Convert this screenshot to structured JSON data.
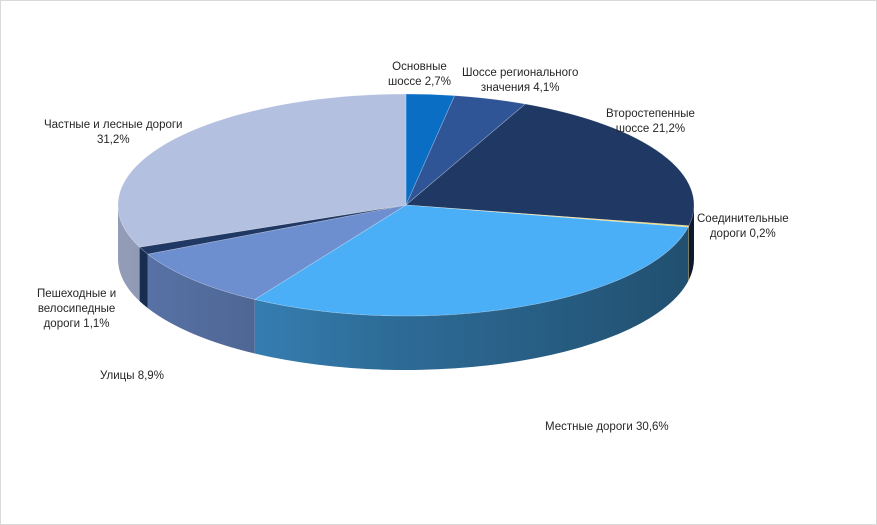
{
  "chart_data": {
    "type": "pie",
    "style": "3d",
    "title": "",
    "unit": "%",
    "slices": [
      {
        "label": "Основные\nшоссе 2,7%",
        "value": 2.7,
        "color": "#0a6ec4"
      },
      {
        "label": "Шоссе регионального\nзначения 4,1%",
        "value": 4.1,
        "color": "#2f5597"
      },
      {
        "label": "Второстепенные\nшоссе 21,2%",
        "value": 21.2,
        "color": "#1f3864"
      },
      {
        "label": "Соединительные\nдороги 0,2%",
        "value": 0.2,
        "color": "#f2d76b"
      },
      {
        "label": "Местные дороги 30,6%",
        "value": 30.6,
        "color": "#4aaff7"
      },
      {
        "label": "Улицы 8,9%",
        "value": 8.9,
        "color": "#6e8fcf"
      },
      {
        "label": "Пешеходные и\nвелосипедные\nдороги 1,1%",
        "value": 1.1,
        "color": "#1f3864"
      },
      {
        "label": "Частные и лесные дороги\n31,2%",
        "value": 31.2,
        "color": "#b3c0e0"
      }
    ]
  }
}
